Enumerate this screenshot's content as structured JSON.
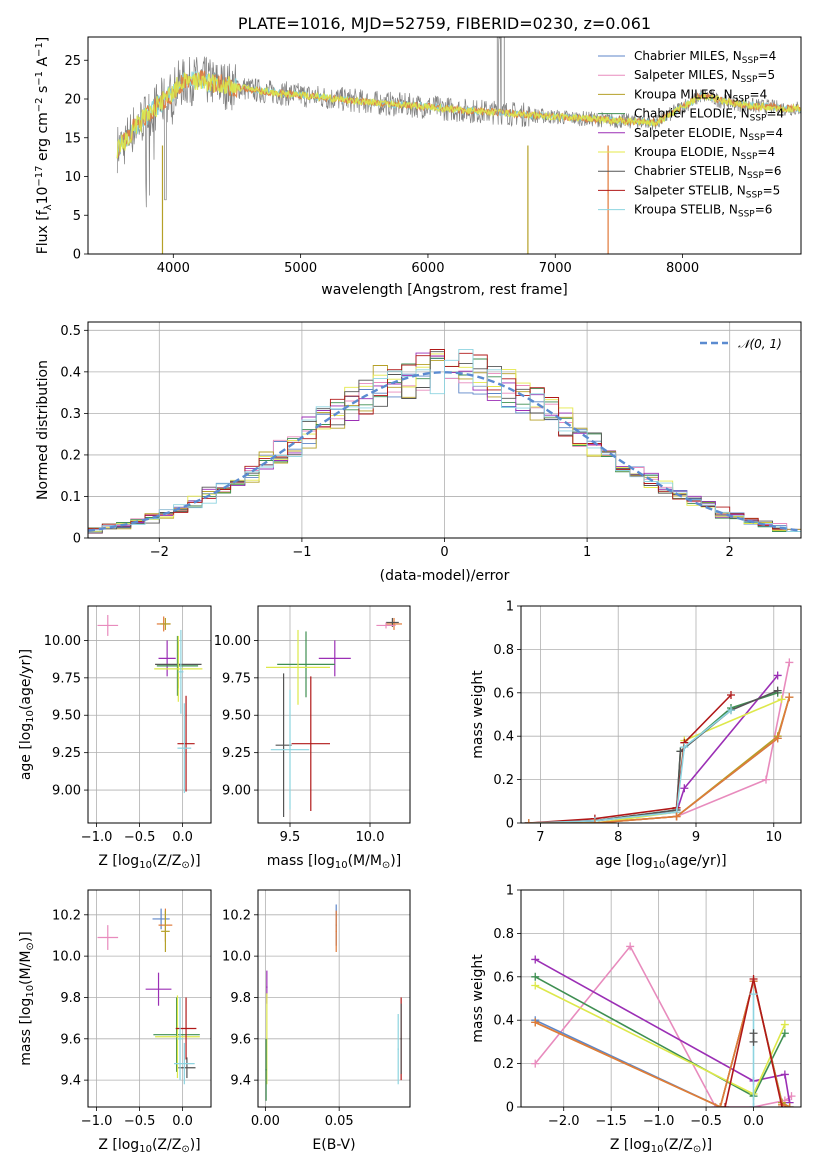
{
  "chart_data": [
    {
      "id": "spectrum",
      "type": "line",
      "title": "PLATE=1016, MJD=52759, FIBERID=0230, z=0.061",
      "xlabel": "wavelength [Angstrom, rest frame]",
      "ylabel_parts": [
        "Flux [f",
        "λ",
        "10",
        "−17",
        " erg cm",
        "−2",
        " s",
        "−1",
        " A",
        "−1",
        "]"
      ],
      "xlim": [
        3330,
        8930
      ],
      "ylim": [
        0,
        28
      ],
      "xticks": [
        4000,
        5000,
        6000,
        7000,
        8000
      ],
      "yticks": [
        0,
        5,
        10,
        15,
        20,
        25
      ],
      "grid": false,
      "legend_position": "top-right",
      "legend": [
        {
          "label": "Chabrier MILES, N",
          "sub": "SSP",
          "tail": "=4",
          "color": "#5e86c8"
        },
        {
          "label": "Salpeter MILES, N",
          "sub": "SSP",
          "tail": "=5",
          "color": "#e88bbd"
        },
        {
          "label": "Kroupa MILES, N",
          "sub": "SSP",
          "tail": "=4",
          "color": "#b5a028"
        },
        {
          "label": "Chabrier ELODIE, N",
          "sub": "SSP",
          "tail": "=4",
          "color": "#3f8f52"
        },
        {
          "label": "Salpeter ELODIE, N",
          "sub": "SSP",
          "tail": "=4",
          "color": "#9b2fb5"
        },
        {
          "label": "Kroupa ELODIE, N",
          "sub": "SSP",
          "tail": "=4",
          "color": "#e4e84a"
        },
        {
          "label": "Chabrier STELIB, N",
          "sub": "SSP",
          "tail": "=6",
          "color": "#555555"
        },
        {
          "label": "Salpeter STELIB, N",
          "sub": "SSP",
          "tail": "=5",
          "color": "#b01818"
        },
        {
          "label": "Kroupa STELIB, N",
          "sub": "SSP",
          "tail": "=6",
          "color": "#8dd4e0"
        }
      ],
      "data_color": "#808080",
      "model_colors": [
        "#7dd3dc",
        "#e07a3a",
        "#dde84a"
      ],
      "continuum": {
        "x": [
          3550,
          3620,
          3700,
          3800,
          3900,
          3950,
          4050,
          4200,
          4400,
          4700,
          5000,
          5300,
          5600,
          6000,
          6300,
          6600,
          6900,
          7200,
          7500,
          7800,
          8000,
          8150,
          8300,
          8500,
          8800
        ],
        "y": [
          13.5,
          14.5,
          16.5,
          18,
          19.5,
          20,
          22,
          22.5,
          21.8,
          21,
          20.5,
          20,
          19.5,
          19,
          18.5,
          18.2,
          17.8,
          17.5,
          17.2,
          17,
          19,
          20.5,
          19.8,
          19.2,
          18.8
        ]
      }
    },
    {
      "id": "residuals",
      "type": "line",
      "xlabel": "(data-model)/error",
      "ylabel": "Normed distribution",
      "xlim": [
        -2.5,
        2.5
      ],
      "ylim": [
        0,
        0.52
      ],
      "xticks": [
        -2,
        -1,
        0,
        1,
        2
      ],
      "yticks": [
        0.0,
        0.1,
        0.2,
        0.3,
        0.4,
        0.5
      ],
      "grid": true,
      "legend_position": "top-right",
      "reference": {
        "label": "𝒩(0, 1)",
        "color": "#5b8bd0"
      },
      "series_colors": [
        "#5e86c8",
        "#e88bbd",
        "#b5a028",
        "#3f8f52",
        "#9b2fb5",
        "#e4e84a",
        "#555555",
        "#b01818",
        "#8dd4e0"
      ]
    },
    {
      "id": "age-vs-Z",
      "type": "scatter",
      "xlabel_parts": [
        "Z [log",
        "10",
        "(Z/Z",
        "⊙",
        ")]"
      ],
      "ylabel_parts": [
        "age  [log",
        "10",
        "(age/yr)]"
      ],
      "xlim": [
        -1.1,
        0.33
      ],
      "ylim": [
        8.78,
        10.23
      ],
      "xticks": [
        -1.0,
        -0.5,
        0.0
      ],
      "xtick_labels": [
        "−1.0",
        "−0.5",
        "0.0"
      ],
      "yticks": [
        9.0,
        9.25,
        9.5,
        9.75,
        10.0
      ],
      "ytick_labels": [
        "9.00",
        "9.25",
        "9.50",
        "9.75",
        "10.00"
      ],
      "grid": true,
      "points": [
        {
          "x": -0.87,
          "y": 10.1,
          "xe": 0.12,
          "ye": 0.07,
          "color": "#e88bbd"
        },
        {
          "x": -0.22,
          "y": 10.11,
          "xe": 0.08,
          "ye": 0.05,
          "color": "#e07a3a"
        },
        {
          "x": -0.2,
          "y": 10.11,
          "xe": 0.06,
          "ye": 0.04,
          "color": "#b5a028"
        },
        {
          "x": -0.18,
          "y": 9.88,
          "xe": 0.1,
          "ye": 0.12,
          "color": "#9b2fb5"
        },
        {
          "x": -0.05,
          "y": 9.84,
          "xe": 0.27,
          "ye": 0.16,
          "color": "#555555"
        },
        {
          "x": -0.06,
          "y": 9.83,
          "xe": 0.24,
          "ye": 0.2,
          "color": "#3f8f52"
        },
        {
          "x": -0.05,
          "y": 9.81,
          "xe": 0.28,
          "ye": 0.22,
          "color": "#dde84a"
        },
        {
          "x": -0.02,
          "y": 9.79,
          "xe": 0.03,
          "ye": 0.28,
          "color": "#8dd4e0"
        },
        {
          "x": 0.04,
          "y": 9.31,
          "xe": 0.1,
          "ye": 0.32,
          "color": "#b01818"
        },
        {
          "x": 0.02,
          "y": 9.28,
          "xe": 0.08,
          "ye": 0.3,
          "color": "#8dd4e0"
        }
      ]
    },
    {
      "id": "age-vs-mass",
      "type": "scatter",
      "xlabel_parts": [
        "mass [log",
        "10",
        "(M/M",
        "⊙",
        ")]"
      ],
      "xlim": [
        9.3,
        10.25
      ],
      "ylim": [
        8.78,
        10.23
      ],
      "xticks": [
        9.5,
        10.0
      ],
      "xtick_labels": [
        "9.5",
        "10.0"
      ],
      "yticks": [
        9.0,
        9.25,
        9.5,
        9.75,
        10.0
      ],
      "ytick_labels": [
        "9.00",
        "9.25",
        "9.50",
        "9.75",
        "10.00"
      ],
      "grid": true,
      "points": [
        {
          "x": 10.15,
          "y": 10.11,
          "xe": 0.05,
          "ye": 0.04,
          "color": "#e07a3a"
        },
        {
          "x": 10.14,
          "y": 10.12,
          "xe": 0.04,
          "ye": 0.03,
          "color": "#555555"
        },
        {
          "x": 10.1,
          "y": 10.1,
          "xe": 0.06,
          "ye": 0.02,
          "color": "#e88bbd"
        },
        {
          "x": 9.78,
          "y": 9.88,
          "xe": 0.1,
          "ye": 0.12,
          "color": "#9b2fb5"
        },
        {
          "x": 9.6,
          "y": 9.84,
          "xe": 0.18,
          "ye": 0.22,
          "color": "#3f8f52"
        },
        {
          "x": 9.55,
          "y": 9.82,
          "xe": 0.2,
          "ye": 0.25,
          "color": "#dde84a"
        },
        {
          "x": 9.46,
          "y": 9.3,
          "xe": 0.05,
          "ye": 0.48,
          "color": "#555555"
        },
        {
          "x": 9.5,
          "y": 9.27,
          "xe": 0.12,
          "ye": 0.4,
          "color": "#8dd4e0"
        },
        {
          "x": 9.63,
          "y": 9.31,
          "xe": 0.12,
          "ye": 0.45,
          "color": "#b01818"
        }
      ]
    },
    {
      "id": "massweight-vs-age",
      "type": "line",
      "xlabel_parts": [
        "age  [log",
        "10",
        "(age/yr)]"
      ],
      "ylabel": "mass weight",
      "xlim": [
        6.75,
        10.35
      ],
      "ylim": [
        0,
        1.0
      ],
      "xticks": [
        7,
        8,
        9,
        10
      ],
      "yticks": [
        0.0,
        0.2,
        0.4,
        0.6,
        0.8,
        1.0
      ],
      "grid": true,
      "series": [
        {
          "color": "#5e86c8",
          "x": [
            6.85,
            7.7,
            8.75,
            10.05,
            10.2
          ],
          "y": [
            0.0,
            0.0,
            0.03,
            0.39,
            0.58
          ]
        },
        {
          "color": "#e88bbd",
          "x": [
            6.85,
            7.7,
            8.75,
            9.9,
            10.2
          ],
          "y": [
            0.0,
            0.0,
            0.03,
            0.2,
            0.74
          ]
        },
        {
          "color": "#b5a028",
          "x": [
            6.85,
            7.7,
            8.75,
            10.05,
            10.2
          ],
          "y": [
            0.0,
            0.0,
            0.03,
            0.4,
            0.58
          ]
        },
        {
          "color": "#3f8f52",
          "x": [
            6.85,
            7.7,
            8.75,
            8.8,
            9.45,
            10.05
          ],
          "y": [
            0.0,
            0.01,
            0.06,
            0.33,
            0.53,
            0.6
          ]
        },
        {
          "color": "#9b2fb5",
          "x": [
            6.85,
            7.7,
            8.75,
            8.85,
            10.05
          ],
          "y": [
            0.0,
            0.01,
            0.05,
            0.16,
            0.68
          ]
        },
        {
          "color": "#dde84a",
          "x": [
            6.85,
            7.7,
            8.75,
            8.85,
            10.1
          ],
          "y": [
            0.0,
            0.0,
            0.05,
            0.38,
            0.57
          ]
        },
        {
          "color": "#555555",
          "x": [
            6.85,
            7.7,
            8.75,
            8.8,
            9.45,
            10.05
          ],
          "y": [
            0.0,
            0.01,
            0.06,
            0.33,
            0.52,
            0.61
          ]
        },
        {
          "color": "#b01818",
          "x": [
            6.85,
            7.7,
            8.75,
            8.85,
            9.45
          ],
          "y": [
            0.0,
            0.02,
            0.07,
            0.37,
            0.59
          ]
        },
        {
          "color": "#8dd4e0",
          "x": [
            6.85,
            7.7,
            8.75,
            8.85,
            9.45
          ],
          "y": [
            0.0,
            0.01,
            0.05,
            0.35,
            0.52
          ]
        },
        {
          "color": "#e07a3a",
          "x": [
            6.85,
            7.7,
            8.75,
            10.05,
            10.2
          ],
          "y": [
            0.0,
            0.0,
            0.03,
            0.39,
            0.58
          ]
        }
      ]
    },
    {
      "id": "mass-vs-Z",
      "type": "scatter",
      "xlabel_parts": [
        "Z [log",
        "10",
        "(Z/Z",
        "⊙",
        ")]"
      ],
      "ylabel_parts": [
        "mass [log",
        "10",
        "(M/M",
        "⊙",
        ")]"
      ],
      "xlim": [
        -1.1,
        0.33
      ],
      "ylim": [
        9.27,
        10.32
      ],
      "xticks": [
        -1.0,
        -0.5,
        0.0
      ],
      "xtick_labels": [
        "−1.0",
        "−0.5",
        "0.0"
      ],
      "yticks": [
        9.4,
        9.6,
        9.8,
        10.0,
        10.2
      ],
      "ytick_labels": [
        "9.4",
        "9.6",
        "9.8",
        "10.0",
        "10.2"
      ],
      "grid": true,
      "points": [
        {
          "x": -0.87,
          "y": 10.09,
          "xe": 0.12,
          "ye": 0.06,
          "color": "#e88bbd"
        },
        {
          "x": -0.25,
          "y": 10.18,
          "xe": 0.1,
          "ye": 0.05,
          "color": "#5e86c8"
        },
        {
          "x": -0.2,
          "y": 10.15,
          "xe": 0.08,
          "ye": 0.08,
          "color": "#e07a3a"
        },
        {
          "x": -0.2,
          "y": 10.12,
          "xe": 0.05,
          "ye": 0.1,
          "color": "#b5a028"
        },
        {
          "x": -0.28,
          "y": 9.84,
          "xe": 0.15,
          "ye": 0.08,
          "color": "#9b2fb5"
        },
        {
          "x": -0.07,
          "y": 9.62,
          "xe": 0.27,
          "ye": 0.18,
          "color": "#3f8f52"
        },
        {
          "x": -0.06,
          "y": 9.61,
          "xe": 0.26,
          "ye": 0.2,
          "color": "#dde84a"
        },
        {
          "x": 0.04,
          "y": 9.65,
          "xe": 0.12,
          "ye": 0.15,
          "color": "#b01818"
        },
        {
          "x": 0.05,
          "y": 9.46,
          "xe": 0.1,
          "ye": 0.05,
          "color": "#555555"
        },
        {
          "x": 0.02,
          "y": 9.48,
          "xe": 0.12,
          "ye": 0.1,
          "color": "#8dd4e0"
        },
        {
          "x": -0.03,
          "y": 9.6,
          "xe": 0.03,
          "ye": 0.2,
          "color": "#8dd4e0"
        }
      ]
    },
    {
      "id": "mass-vs-EBV",
      "type": "scatter",
      "xlabel": "E(B-V)",
      "xlim": [
        -0.005,
        0.098
      ],
      "ylim": [
        9.27,
        10.32
      ],
      "xticks": [
        0.0,
        0.05
      ],
      "xtick_labels": [
        "0.00",
        "0.05"
      ],
      "yticks": [
        9.4,
        9.6,
        9.8,
        10.0,
        10.2
      ],
      "ytick_labels": [
        "9.4",
        "9.6",
        "9.8",
        "10.0",
        "10.2"
      ],
      "grid": true,
      "points": [
        {
          "x": 0.001,
          "y": 9.85,
          "xe": 0.0005,
          "ye": 0.08,
          "color": "#9b2fb5"
        },
        {
          "x": 0.001,
          "y": 9.6,
          "xe": 0.0005,
          "ye": 0.22,
          "color": "#dde84a"
        },
        {
          "x": 0.0005,
          "y": 9.45,
          "xe": 0.0005,
          "ye": 0.15,
          "color": "#3f8f52"
        },
        {
          "x": 0.048,
          "y": 10.15,
          "xe": 0.0005,
          "ye": 0.1,
          "color": "#5e86c8"
        },
        {
          "x": 0.048,
          "y": 10.12,
          "xe": 0.0005,
          "ye": 0.1,
          "color": "#e07a3a"
        },
        {
          "x": 0.09,
          "y": 9.55,
          "xe": 0.0005,
          "ye": 0.17,
          "color": "#8dd4e0"
        },
        {
          "x": 0.092,
          "y": 9.6,
          "xe": 0.0005,
          "ye": 0.2,
          "color": "#b01818"
        },
        {
          "x": 0.092,
          "y": 9.6,
          "xe": 0.0005,
          "ye": 0.17,
          "color": "#555555"
        }
      ]
    },
    {
      "id": "massweight-vs-Z",
      "type": "line",
      "xlabel_parts": [
        "Z [log",
        "10",
        "(Z/Z",
        "⊙",
        ")]"
      ],
      "ylabel": "mass weight",
      "xlim": [
        -2.45,
        0.5
      ],
      "ylim": [
        0,
        1.0
      ],
      "xticks": [
        -2.0,
        -1.5,
        -1.0,
        -0.5,
        0.0
      ],
      "xtick_labels": [
        "−2.0",
        "−1.5",
        "−1.0",
        "−0.5",
        "0.0"
      ],
      "yticks": [
        0.0,
        0.2,
        0.4,
        0.6,
        0.8,
        1.0
      ],
      "grid": true,
      "series": [
        {
          "color": "#e88bbd",
          "x": [
            -2.3,
            -1.3,
            -0.4,
            0.0,
            0.33,
            0.4
          ],
          "y": [
            0.2,
            0.74,
            0.0,
            0.0,
            0.03,
            0.05
          ]
        },
        {
          "color": "#9b2fb5",
          "x": [
            -2.3,
            0.0,
            0.33,
            0.38
          ],
          "y": [
            0.68,
            0.12,
            0.15,
            0.02
          ]
        },
        {
          "color": "#3f8f52",
          "x": [
            -2.3,
            0.0,
            0.33
          ],
          "y": [
            0.6,
            0.05,
            0.34
          ]
        },
        {
          "color": "#dde84a",
          "x": [
            -2.3,
            0.0,
            0.33
          ],
          "y": [
            0.56,
            0.06,
            0.38
          ]
        },
        {
          "color": "#5e86c8",
          "x": [
            -2.3,
            -0.35,
            0.0,
            0.3,
            0.38
          ],
          "y": [
            0.4,
            0.0,
            0.58,
            0.02,
            0.0
          ]
        },
        {
          "color": "#b5a028",
          "x": [
            -2.3,
            -0.35,
            0.0,
            0.3,
            0.38
          ],
          "y": [
            0.39,
            0.0,
            0.58,
            0.02,
            0.0
          ]
        },
        {
          "color": "#e07a3a",
          "x": [
            -2.3,
            -0.35,
            0.0,
            0.3,
            0.38
          ],
          "y": [
            0.39,
            0.0,
            0.58,
            0.01,
            0.0
          ]
        },
        {
          "color": "#b01818",
          "x": [
            -0.3,
            0.0,
            0.3
          ],
          "y": [
            0.0,
            0.59,
            0.0
          ]
        },
        {
          "color": "#8dd4e0",
          "x": [
            0.0,
            0.0
          ],
          "y": [
            0.0,
            0.52
          ]
        },
        {
          "color": "#555555",
          "x": [
            0.0,
            0.0
          ],
          "y": [
            0.3,
            0.34
          ]
        }
      ]
    }
  ]
}
